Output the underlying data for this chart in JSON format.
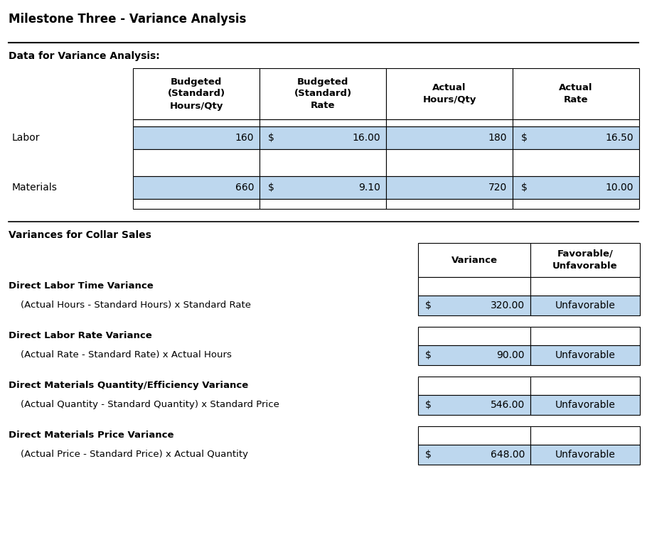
{
  "title": "Milestone Three - Variance Analysis",
  "section1_label": "Data for Variance Analysis:",
  "table1_col_headers": [
    "Budgeted\n(Standard)\nHours/Qty",
    "Budgeted\n(Standard)\nRate",
    "Actual\nHours/Qty",
    "Actual\nRate"
  ],
  "table1_rows": [
    [
      "Labor",
      "160",
      "$ 16.00",
      "180",
      "$ 16.50"
    ],
    [
      "Materials",
      "660",
      "$ 9.10",
      "720",
      "$ 10.00"
    ]
  ],
  "section2_label": "Variances for Collar Sales",
  "table2_col_headers": [
    "Variance",
    "Favorable/\nUnfavorable"
  ],
  "table2_rows": [
    {
      "bold_label": "Direct Labor Time Variance",
      "formula": "    (Actual Hours - Standard Hours) x Standard Rate",
      "variance": "$ 320.00",
      "fav": "Unfavorable"
    },
    {
      "bold_label": "Direct Labor Rate Variance",
      "formula": "    (Actual Rate - Standard Rate) x Actual Hours",
      "variance": "$ 90.00",
      "fav": "Unfavorable"
    },
    {
      "bold_label": "Direct Materials Quantity/Efficiency Variance",
      "formula": "    (Actual Quantity - Standard Quantity) x Standard Price",
      "variance": "$ 546.00",
      "fav": "Unfavorable"
    },
    {
      "bold_label": "Direct Materials Price Variance",
      "formula": "    (Actual Price - Standard Price) x Actual Quantity",
      "variance": "$ 648.00",
      "fav": "Unfavorable"
    }
  ],
  "blue_color": "#BDD7EE",
  "white_color": "#FFFFFF",
  "bg_color": "#FFFFFF",
  "border_color": "#000000"
}
